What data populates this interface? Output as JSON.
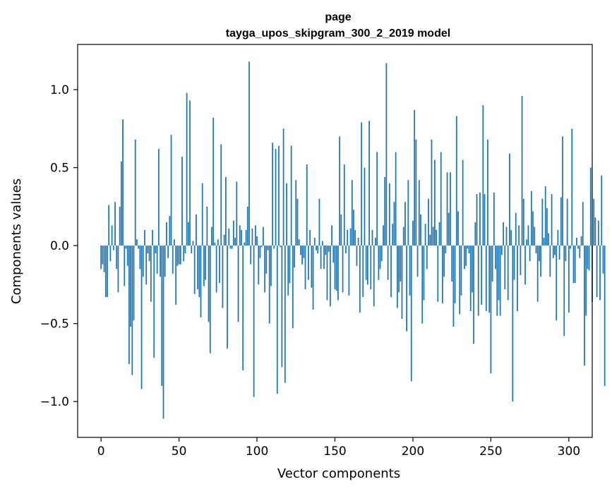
{
  "chart_data": {
    "type": "bar",
    "title": "page",
    "subtitle": "tayga_upos_skipgram_300_2_2019 model",
    "xlabel": "Vector components",
    "ylabel": "Components values",
    "xlim": [
      -15,
      315
    ],
    "ylim": [
      -1.23,
      1.29
    ],
    "xticks": [
      0,
      50,
      100,
      150,
      200,
      250,
      300
    ],
    "xtick_labels": [
      "0",
      "50",
      "100",
      "150",
      "200",
      "250",
      "300"
    ],
    "yticks": [
      -1.0,
      -0.5,
      0.0,
      0.5,
      1.0
    ],
    "ytick_labels": [
      "−1.0",
      "−0.5",
      "0.0",
      "0.5",
      "1.0"
    ],
    "bar_color": "#1f77b4",
    "values": [
      -0.15,
      -0.12,
      -0.17,
      -0.33,
      -0.33,
      0.26,
      -0.1,
      0.13,
      -0.03,
      0.28,
      -0.15,
      -0.3,
      0.25,
      0.54,
      0.81,
      -0.26,
      -0.02,
      -0.13,
      -0.76,
      -0.52,
      -0.83,
      -0.48,
      0.68,
      0.04,
      -0.02,
      -0.15,
      -0.92,
      -0.2,
      0.1,
      -0.25,
      -0.05,
      -0.1,
      -0.36,
      0.1,
      -0.72,
      -0.05,
      -0.18,
      0.62,
      -0.2,
      -0.9,
      -1.11,
      -0.2,
      0.15,
      -0.08,
      0.19,
      0.71,
      -0.18,
      0.04,
      -0.38,
      -0.13,
      -0.12,
      -0.12,
      0.57,
      -0.1,
      -0.05,
      0.98,
      0.15,
      0.93,
      -0.05,
      0.03,
      -0.31,
      0.2,
      -0.28,
      -0.33,
      -0.46,
      0.4,
      -0.26,
      -0.22,
      0.25,
      -0.49,
      -0.69,
      0.12,
      0.82,
      0.02,
      -0.3,
      0.04,
      -0.24,
      0.65,
      -0.4,
      0.07,
      0.44,
      -0.66,
      0.11,
      -0.02,
      -0.02,
      0.16,
      0.05,
      0.41,
      -0.49,
      0.13,
      0.1,
      -0.8,
      0.02,
      0.1,
      0.25,
      1.18,
      -0.12,
      0.11,
      -0.97,
      0.13,
      0.06,
      -0.25,
      -0.08,
      -0.01,
      0.12,
      -0.3,
      -0.18,
      -0.03,
      -0.5,
      -0.26,
      0.66,
      -0.02,
      0.62,
      -0.95,
      0.64,
      -0.01,
      -0.78,
      0.75,
      -0.88,
      0.4,
      -0.32,
      -0.24,
      0.64,
      -0.53,
      -0.14,
      0.42,
      0.3,
      0.04,
      -0.06,
      -0.12,
      -0.08,
      -0.28,
      0.52,
      -0.22,
      0.1,
      -0.27,
      -0.41,
      0.05,
      -0.03,
      -0.05,
      0.3,
      -0.15,
      0.03,
      -0.15,
      -0.06,
      -0.35,
      -0.04,
      -0.39,
      0.13,
      -0.11,
      -0.28,
      -0.29,
      -0.35,
      0.7,
      0.2,
      -0.3,
      0.52,
      -0.05,
      0.1,
      -0.32,
      0.11,
      0.42,
      0.23,
      0.1,
      -0.13,
      0.05,
      -0.43,
      0.79,
      -0.33,
      0.5,
      -0.22,
      -0.25,
      0.8,
      -0.28,
      0.1,
      -0.39,
      0.05,
      0.6,
      -0.22,
      -0.15,
      -0.1,
      0.13,
      0.44,
      1.17,
      -0.22,
      0.4,
      -0.33,
      0.14,
      0.28,
      0.6,
      -0.4,
      -0.3,
      -0.23,
      -0.47,
      0.12,
      0.28,
      -0.55,
      0.42,
      -0.32,
      -0.87,
      0.16,
      0.87,
      0.68,
      -0.2,
      0.42,
      0.2,
      -0.5,
      -0.35,
      0.14,
      -0.15,
      0.3,
      0.07,
      0.68,
      0.12,
      0.55,
      0.1,
      -0.36,
      0.15,
      0.6,
      -0.37,
      -0.2,
      -0.05,
      0.47,
      0.21,
      0.47,
      -0.23,
      -0.52,
      -0.37,
      0.83,
      0.22,
      -0.44,
      -0.32,
      0.55,
      -0.15,
      -0.13,
      -0.02,
      -0.05,
      -0.42,
      -0.3,
      -0.63,
      0.15,
      0.33,
      -0.45,
      0.34,
      -0.38,
      0.9,
      0.33,
      -0.42,
      0.68,
      -0.43,
      -0.82,
      -0.23,
      0.34,
      -0.15,
      -0.45,
      -0.35,
      -0.45,
      -0.06,
      0.15,
      -0.28,
      0.12,
      -0.35,
      0.59,
      0.1,
      -1.0,
      -0.22,
      0.21,
      -0.42,
      0.13,
      -0.19,
      0.96,
      0.3,
      -0.25,
      0.04,
      0.13,
      -0.1,
      0.35,
      0.22,
      0.12,
      -0.05,
      -0.36,
      -0.1,
      -0.2,
      0.3,
      0.05,
      0.38,
      0.24,
      0.08,
      -0.2,
      0.33,
      -0.08,
      -0.06,
      -0.48,
      0.1,
      -0.09,
      0.31,
      0.7,
      -0.58,
      -0.1,
      0.3,
      -0.43,
      -0.02,
      0.75,
      -0.24,
      -0.24,
      0.05,
      -0.02,
      -0.08,
      0.06,
      0.28,
      -0.77,
      -0.45,
      -0.15,
      -0.16,
      0.5,
      -0.36,
      0.3,
      0.18,
      -0.33,
      0.16,
      -0.35,
      0.45,
      -0.18,
      -0.9
    ]
  }
}
